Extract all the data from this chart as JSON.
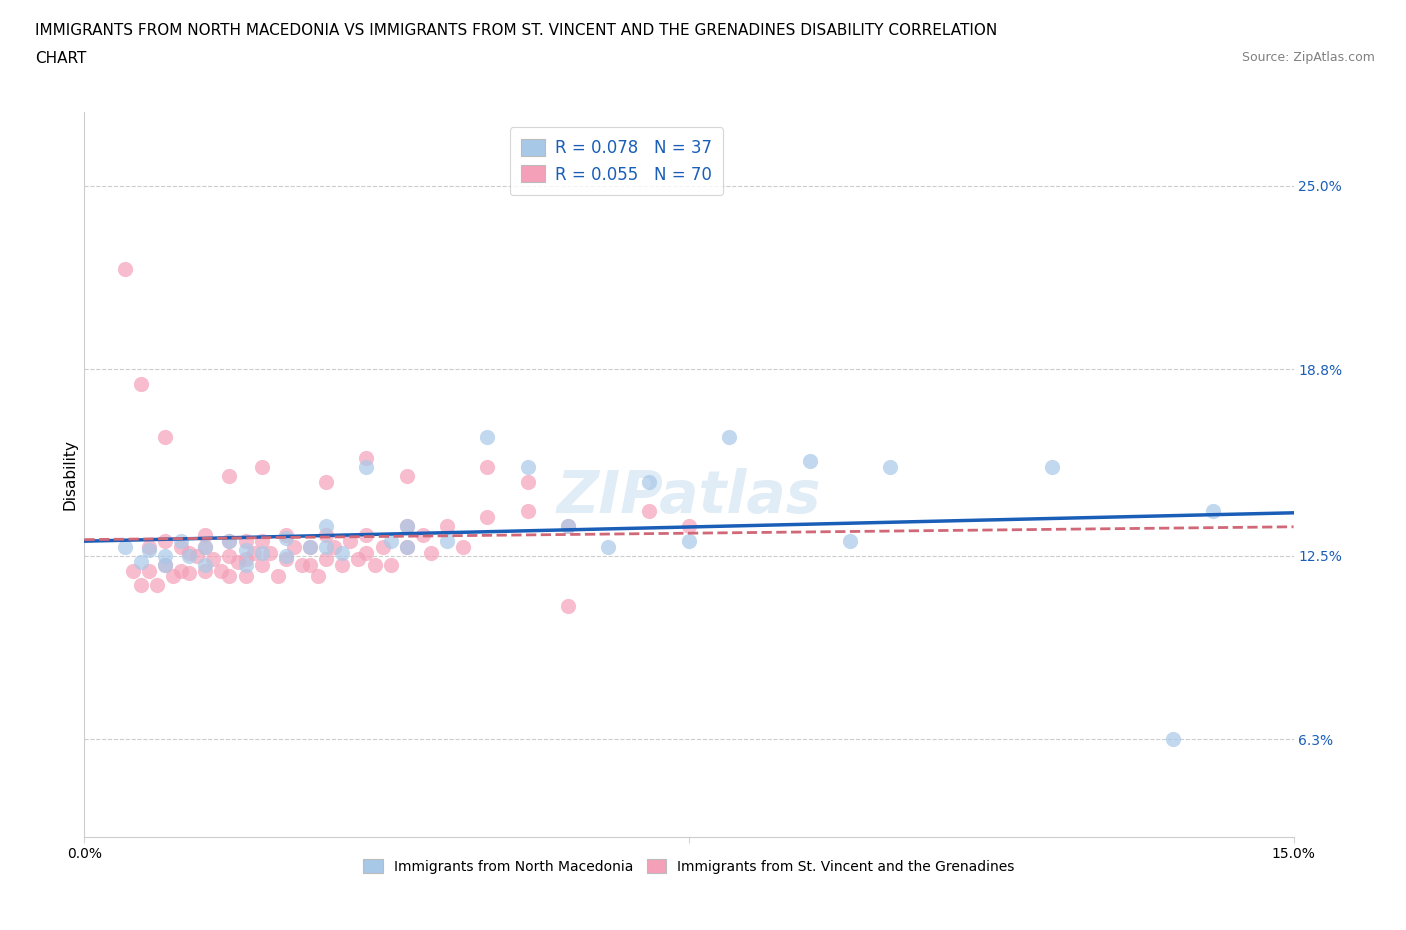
{
  "title_line1": "IMMIGRANTS FROM NORTH MACEDONIA VS IMMIGRANTS FROM ST. VINCENT AND THE GRENADINES DISABILITY CORRELATION",
  "title_line2": "CHART",
  "source": "Source: ZipAtlas.com",
  "ylabel": "Disability",
  "r_blue": 0.078,
  "n_blue": 37,
  "r_pink": 0.055,
  "n_pink": 70,
  "y_ticks": [
    0.063,
    0.125,
    0.188,
    0.25
  ],
  "y_tick_labels": [
    "6.3%",
    "12.5%",
    "18.8%",
    "25.0%"
  ],
  "xmin": 0.0,
  "xmax": 0.15,
  "ymin": 0.03,
  "ymax": 0.275,
  "color_blue": "#a8c8e8",
  "color_pink": "#f4a0b8",
  "line_blue": "#1a5eb8",
  "line_pink": "#d06878",
  "blue_x": [
    0.005,
    0.007,
    0.008,
    0.01,
    0.01,
    0.012,
    0.013,
    0.015,
    0.015,
    0.018,
    0.02,
    0.02,
    0.022,
    0.025,
    0.025,
    0.028,
    0.03,
    0.03,
    0.032,
    0.035,
    0.038,
    0.04,
    0.04,
    0.045,
    0.05,
    0.055,
    0.06,
    0.065,
    0.07,
    0.075,
    0.08,
    0.09,
    0.095,
    0.1,
    0.12,
    0.135,
    0.14
  ],
  "blue_y": [
    0.128,
    0.123,
    0.127,
    0.125,
    0.122,
    0.13,
    0.125,
    0.128,
    0.122,
    0.13,
    0.127,
    0.122,
    0.126,
    0.131,
    0.125,
    0.128,
    0.135,
    0.128,
    0.126,
    0.155,
    0.13,
    0.128,
    0.135,
    0.13,
    0.165,
    0.155,
    0.135,
    0.128,
    0.15,
    0.13,
    0.165,
    0.157,
    0.13,
    0.155,
    0.155,
    0.063,
    0.14
  ],
  "pink_x": [
    0.005,
    0.006,
    0.007,
    0.008,
    0.008,
    0.009,
    0.01,
    0.01,
    0.011,
    0.012,
    0.012,
    0.013,
    0.013,
    0.014,
    0.015,
    0.015,
    0.015,
    0.016,
    0.017,
    0.018,
    0.018,
    0.018,
    0.019,
    0.02,
    0.02,
    0.02,
    0.021,
    0.022,
    0.022,
    0.023,
    0.024,
    0.025,
    0.025,
    0.026,
    0.027,
    0.028,
    0.028,
    0.029,
    0.03,
    0.03,
    0.031,
    0.032,
    0.033,
    0.034,
    0.035,
    0.035,
    0.036,
    0.037,
    0.038,
    0.04,
    0.04,
    0.042,
    0.043,
    0.045,
    0.047,
    0.05,
    0.055,
    0.06,
    0.07,
    0.075,
    0.007,
    0.01,
    0.018,
    0.022,
    0.03,
    0.035,
    0.04,
    0.05,
    0.055,
    0.06
  ],
  "pink_y": [
    0.222,
    0.12,
    0.115,
    0.128,
    0.12,
    0.115,
    0.13,
    0.122,
    0.118,
    0.128,
    0.12,
    0.126,
    0.119,
    0.125,
    0.132,
    0.128,
    0.12,
    0.124,
    0.12,
    0.13,
    0.125,
    0.118,
    0.123,
    0.13,
    0.124,
    0.118,
    0.126,
    0.13,
    0.122,
    0.126,
    0.118,
    0.132,
    0.124,
    0.128,
    0.122,
    0.128,
    0.122,
    0.118,
    0.132,
    0.124,
    0.128,
    0.122,
    0.13,
    0.124,
    0.132,
    0.126,
    0.122,
    0.128,
    0.122,
    0.135,
    0.128,
    0.132,
    0.126,
    0.135,
    0.128,
    0.138,
    0.14,
    0.135,
    0.14,
    0.135,
    0.183,
    0.165,
    0.152,
    0.155,
    0.15,
    0.158,
    0.152,
    0.155,
    0.15,
    0.108
  ],
  "watermark": "ZIPatlas",
  "title_fontsize": 11,
  "source_fontsize": 9,
  "tick_fontsize": 10,
  "legend_fontsize": 12
}
